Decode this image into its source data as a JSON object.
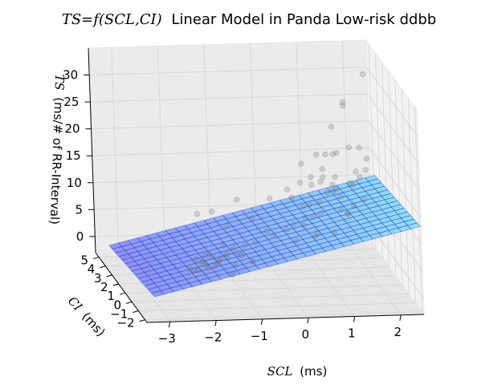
{
  "chart_data": {
    "type": "scatter",
    "title_math": "TS=f(SCL,CI)",
    "title_text": "Linear Model in Panda Low-risk ddbb",
    "xlabel_math": "SCL",
    "xlabel_unit": "(ms)",
    "ylabel_math": "CI",
    "ylabel_unit": "(ms)",
    "zlabel_math": "TS",
    "zlabel_unit": "(ms/# of RR-Interval)",
    "xlim": [
      -3.5,
      2.5
    ],
    "ylim": [
      -2.3,
      5.5
    ],
    "zlim": [
      -3,
      35
    ],
    "x_ticks": [
      "−3",
      "−2",
      "−1",
      "0",
      "1",
      "2"
    ],
    "y_ticks": [
      "−2",
      "−1",
      "0",
      "1",
      "2",
      "3",
      "4",
      "5"
    ],
    "z_ticks": [
      "0",
      "5",
      "10",
      "15",
      "20",
      "25",
      "30"
    ],
    "plane": {
      "intercept": 7.5,
      "coef_scl": 2.0,
      "coef_ci": -0.3,
      "color_low": "#6a6af8",
      "color_high": "#66e3ff"
    },
    "grid": true,
    "points": [
      {
        "x": -2.1,
        "y": -1.2,
        "z": 6.0
      },
      {
        "x": -2.0,
        "y": -1.0,
        "z": 5.2
      },
      {
        "x": -1.9,
        "y": -1.3,
        "z": 7.1
      },
      {
        "x": -1.8,
        "y": -0.9,
        "z": 4.8
      },
      {
        "x": -2.2,
        "y": -0.8,
        "z": 5.9
      },
      {
        "x": -1.7,
        "y": -1.1,
        "z": 6.5
      },
      {
        "x": -1.6,
        "y": -1.4,
        "z": 7.8
      },
      {
        "x": -2.3,
        "y": -1.1,
        "z": 4.4
      },
      {
        "x": -1.5,
        "y": -0.7,
        "z": 6.0
      },
      {
        "x": -1.9,
        "y": -0.6,
        "z": 3.9
      },
      {
        "x": -2.0,
        "y": -1.5,
        "z": 8.1
      },
      {
        "x": -1.4,
        "y": -1.2,
        "z": 5.3
      },
      {
        "x": -1.8,
        "y": -1.6,
        "z": 6.8
      },
      {
        "x": -2.4,
        "y": -1.3,
        "z": 5.0
      },
      {
        "x": -1.3,
        "y": -1.0,
        "z": 7.2
      },
      {
        "x": -1.7,
        "y": -0.5,
        "z": 4.6
      },
      {
        "x": -2.1,
        "y": -0.4,
        "z": 3.2
      },
      {
        "x": -1.2,
        "y": -0.8,
        "z": 6.4
      },
      {
        "x": -1.6,
        "y": -0.9,
        "z": 8.5
      },
      {
        "x": -2.2,
        "y": -1.7,
        "z": 7.0
      },
      {
        "x": -1.5,
        "y": -1.5,
        "z": 4.1
      },
      {
        "x": -1.0,
        "y": -1.1,
        "z": 5.7
      },
      {
        "x": -1.1,
        "y": -0.6,
        "z": 7.9
      },
      {
        "x": -1.9,
        "y": -0.2,
        "z": 5.5
      },
      {
        "x": -1.3,
        "y": -0.3,
        "z": 6.9
      },
      {
        "x": -0.9,
        "y": -0.9,
        "z": 8.8
      },
      {
        "x": -0.5,
        "y": 0.2,
        "z": 9.0
      },
      {
        "x": -0.3,
        "y": 0.6,
        "z": 7.5
      },
      {
        "x": -0.7,
        "y": 1.0,
        "z": 10.2
      },
      {
        "x": -1.2,
        "y": 1.4,
        "z": 8.3
      },
      {
        "x": -1.4,
        "y": 2.2,
        "z": 9.6
      },
      {
        "x": -0.8,
        "y": 2.6,
        "z": 11.0
      },
      {
        "x": -0.2,
        "y": 1.8,
        "z": 12.4
      },
      {
        "x": -1.6,
        "y": 3.1,
        "z": 7.7
      },
      {
        "x": 0.2,
        "y": -0.6,
        "z": 11.3
      },
      {
        "x": 0.4,
        "y": -0.9,
        "z": 9.8
      },
      {
        "x": 0.6,
        "y": -0.4,
        "z": 13.1
      },
      {
        "x": 0.8,
        "y": -1.0,
        "z": 10.5
      },
      {
        "x": 0.3,
        "y": -0.2,
        "z": 12.0
      },
      {
        "x": 1.0,
        "y": -0.7,
        "z": 14.2
      },
      {
        "x": 0.5,
        "y": 0.1,
        "z": 11.6
      },
      {
        "x": 1.2,
        "y": -0.3,
        "z": 12.7
      },
      {
        "x": 0.7,
        "y": 0.4,
        "z": 13.9
      },
      {
        "x": 0.1,
        "y": 0.3,
        "z": 10.1
      },
      {
        "x": 0.9,
        "y": 0.7,
        "z": 15.0
      },
      {
        "x": 1.4,
        "y": 0.2,
        "z": 13.3
      },
      {
        "x": 0.4,
        "y": 0.9,
        "z": 12.2
      },
      {
        "x": 1.1,
        "y": 1.1,
        "z": 14.6
      },
      {
        "x": 0.6,
        "y": 1.4,
        "z": 11.8
      },
      {
        "x": 1.5,
        "y": 0.9,
        "z": 16.1
      },
      {
        "x": 0.2,
        "y": 1.2,
        "z": 13.5
      },
      {
        "x": 0.9,
        "y": 1.7,
        "z": 15.4
      },
      {
        "x": 1.3,
        "y": 1.5,
        "z": 12.9
      },
      {
        "x": 0.5,
        "y": 2.0,
        "z": 14.8
      },
      {
        "x": 1.7,
        "y": 1.3,
        "z": 16.7
      },
      {
        "x": 0.8,
        "y": 2.4,
        "z": 13.7
      },
      {
        "x": 1.1,
        "y": 2.8,
        "z": 15.9
      },
      {
        "x": 1.6,
        "y": 2.1,
        "z": 14.3
      },
      {
        "x": 0.3,
        "y": 2.6,
        "z": 12.6
      },
      {
        "x": 1.9,
        "y": 1.8,
        "z": 17.2
      },
      {
        "x": 1.4,
        "y": 3.0,
        "z": 14.0
      },
      {
        "x": 0.7,
        "y": 3.2,
        "z": 16.3
      },
      {
        "x": 1.8,
        "y": 2.6,
        "z": 15.6
      },
      {
        "x": 1.2,
        "y": 3.5,
        "z": 13.2
      },
      {
        "x": 2.0,
        "y": 2.3,
        "z": 18.4
      },
      {
        "x": 0.0,
        "y": -0.8,
        "z": 8.9
      },
      {
        "x": -0.1,
        "y": 0.0,
        "z": 9.7
      },
      {
        "x": 0.4,
        "y": -1.3,
        "z": 10.9
      },
      {
        "x": 1.0,
        "y": 0.0,
        "z": 16.8
      },
      {
        "x": 1.3,
        "y": 0.5,
        "z": 11.4
      },
      {
        "x": 0.6,
        "y": 1.0,
        "z": 17.5
      },
      {
        "x": 1.6,
        "y": 0.0,
        "z": 14.9
      },
      {
        "x": 0.9,
        "y": -0.2,
        "z": 18.0
      },
      {
        "x": 1.5,
        "y": 3.4,
        "z": 17.8
      },
      {
        "x": 1.2,
        "y": 1.8,
        "z": 20.3
      },
      {
        "x": 1.5,
        "y": 1.4,
        "z": 22.1
      },
      {
        "x": 0.9,
        "y": 2.2,
        "z": 19.6
      },
      {
        "x": 1.8,
        "y": 2.0,
        "z": 21.0
      },
      {
        "x": 1.3,
        "y": 2.6,
        "z": 24.0
      },
      {
        "x": 1.6,
        "y": 2.9,
        "z": 28.0
      },
      {
        "x": 2.1,
        "y": 3.2,
        "z": 32.6
      },
      {
        "x": 1.0,
        "y": 1.5,
        "z": 20.8
      },
      {
        "x": 1.7,
        "y": 3.6,
        "z": 26.2
      }
    ]
  }
}
